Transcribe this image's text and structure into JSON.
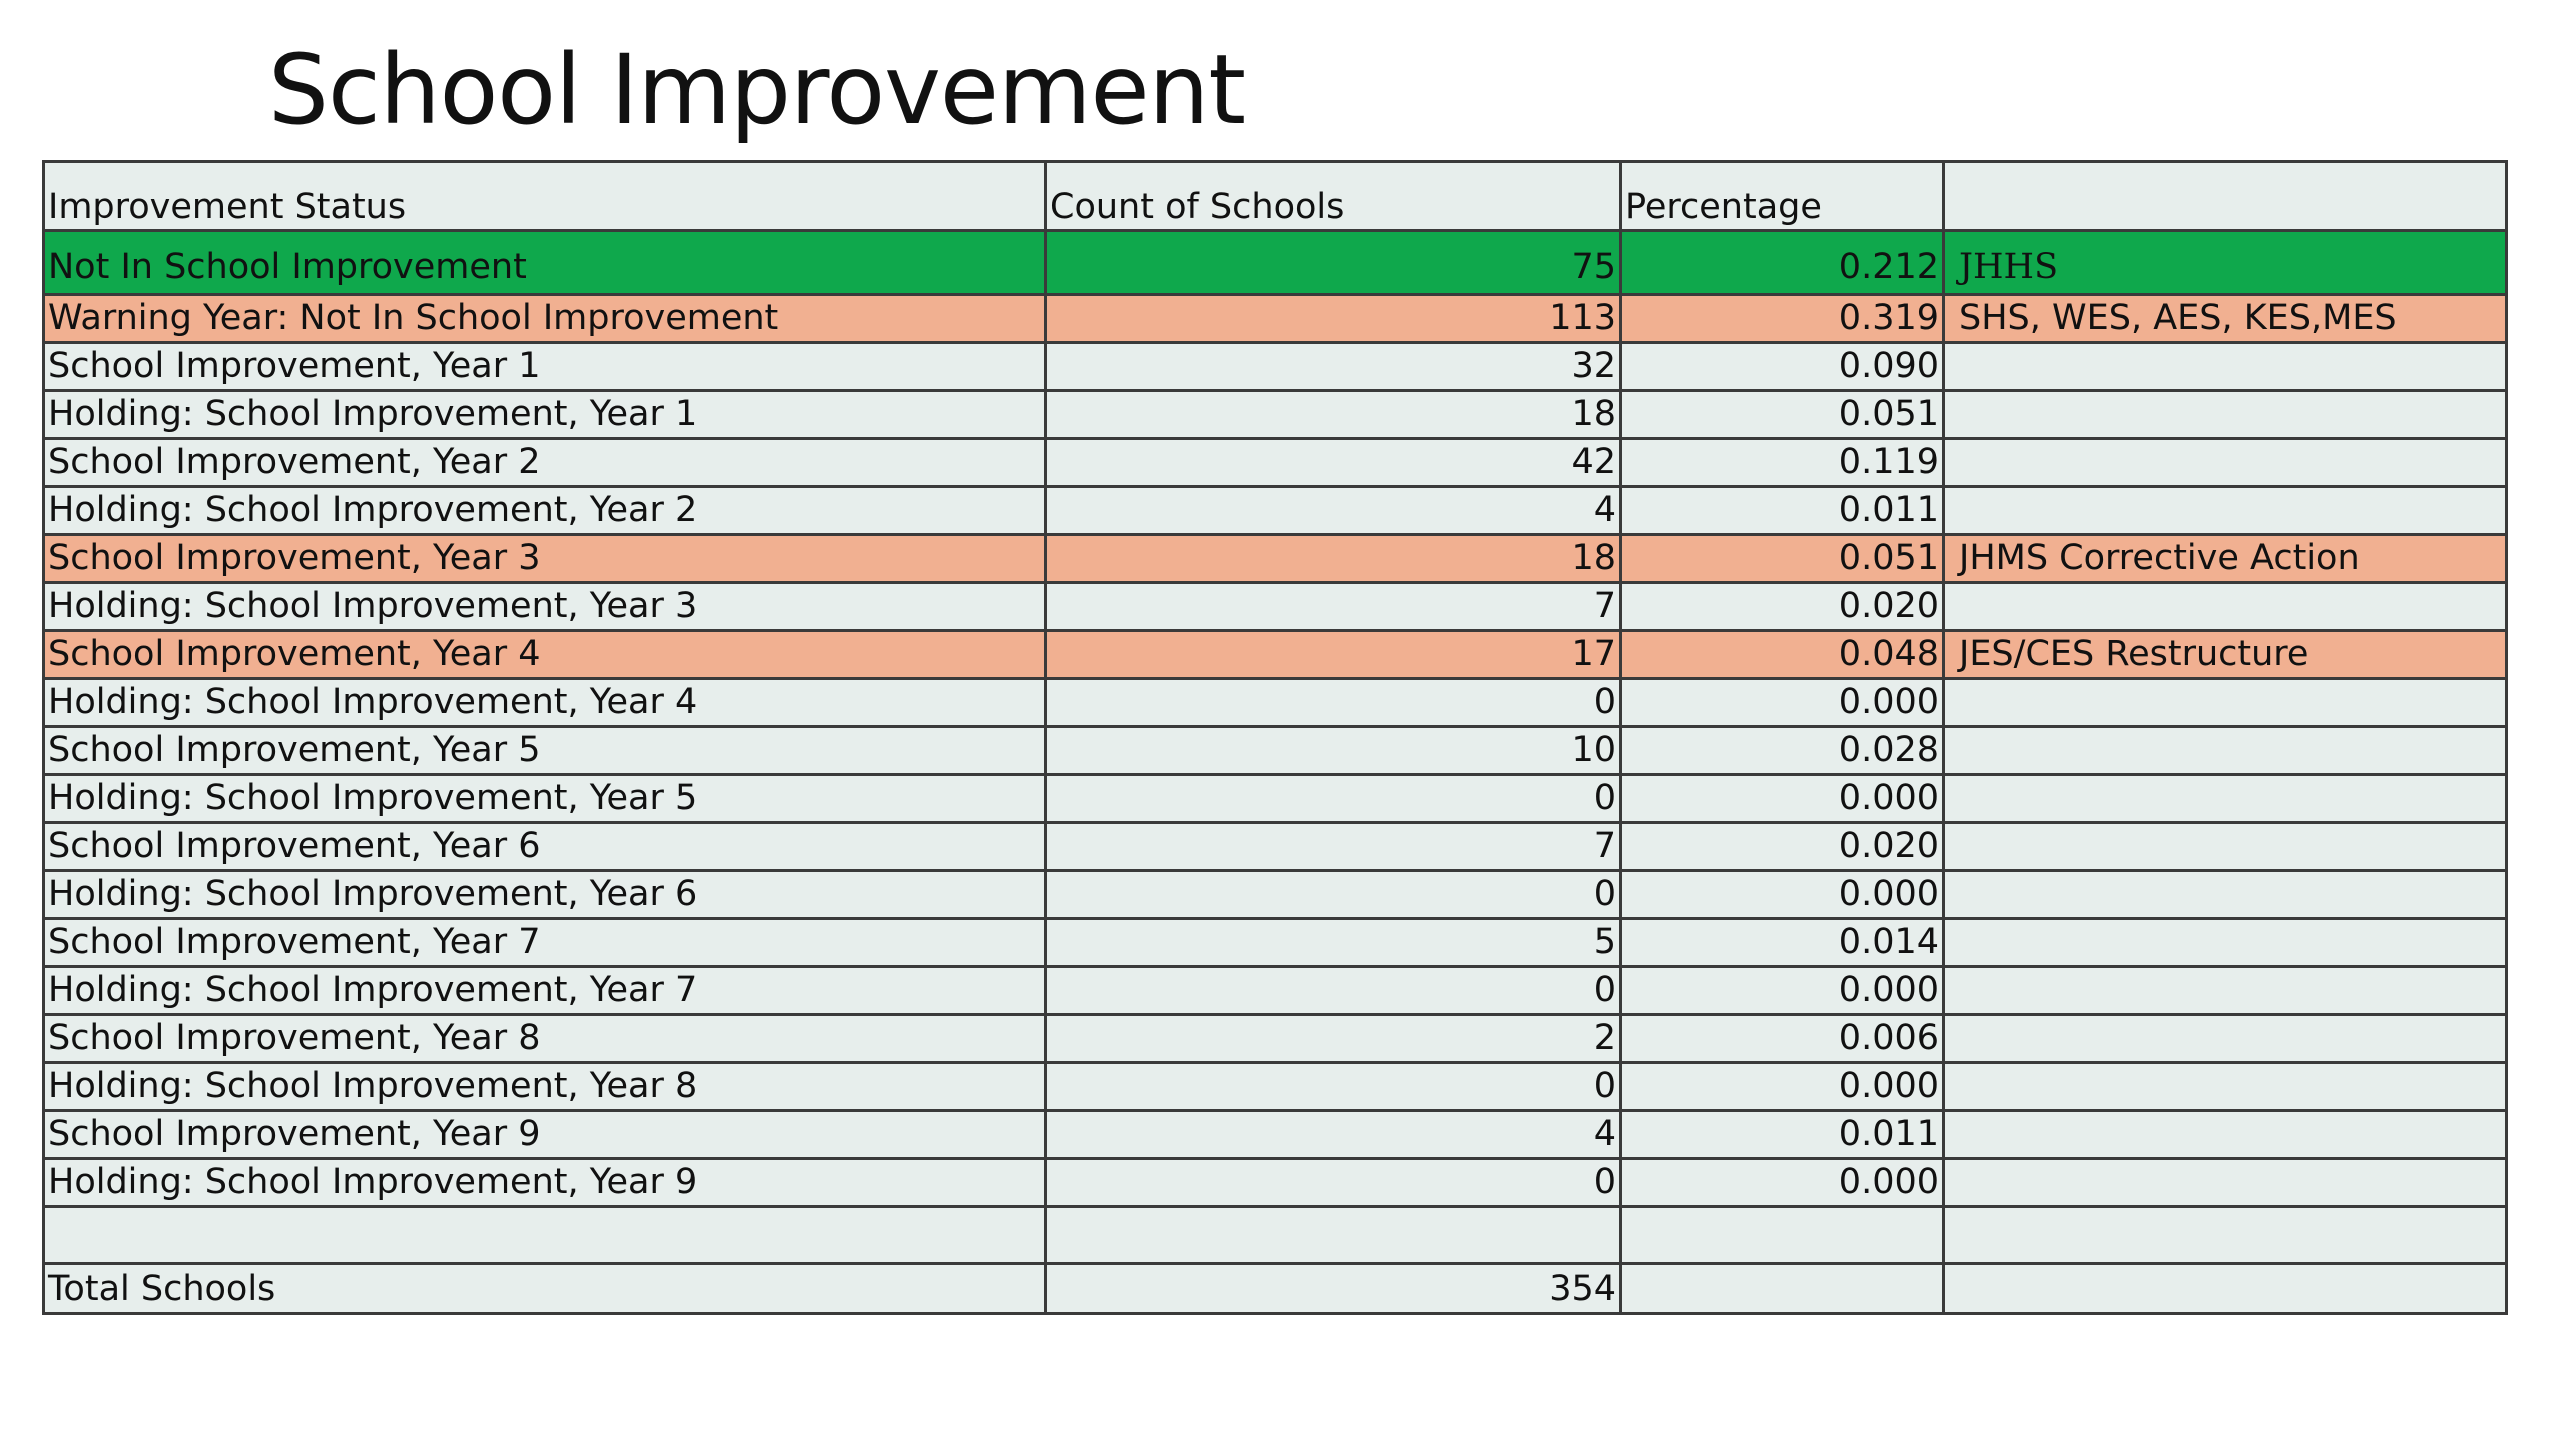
{
  "title": "School Improvement",
  "colors": {
    "green_row": "#0fa84c",
    "orange_row": "#f1b091",
    "cell_background": "#e7eeec",
    "border": "#3a3a3a"
  },
  "table": {
    "headers": [
      "Improvement Status",
      "Count of Schools",
      "Percentage",
      ""
    ],
    "rows": [
      {
        "status": "Not In School Improvement",
        "count": "75",
        "percentage": "0.212",
        "note": "JHHS",
        "highlight": "green"
      },
      {
        "status": "Warning Year: Not In School Improvement",
        "count": "113",
        "percentage": "0.319",
        "note": "SHS, WES, AES, KES,MES",
        "highlight": "orange"
      },
      {
        "status": "School Improvement, Year 1",
        "count": "32",
        "percentage": "0.090",
        "note": "",
        "highlight": ""
      },
      {
        "status": "Holding: School Improvement, Year 1",
        "count": "18",
        "percentage": "0.051",
        "note": "",
        "highlight": ""
      },
      {
        "status": "School Improvement, Year 2",
        "count": "42",
        "percentage": "0.119",
        "note": "",
        "highlight": ""
      },
      {
        "status": "Holding: School Improvement, Year 2",
        "count": "4",
        "percentage": "0.011",
        "note": "",
        "highlight": ""
      },
      {
        "status": "School Improvement, Year 3",
        "count": "18",
        "percentage": "0.051",
        "note": "JHMS Corrective Action",
        "highlight": "orange"
      },
      {
        "status": "Holding: School Improvement, Year 3",
        "count": "7",
        "percentage": "0.020",
        "note": "",
        "highlight": ""
      },
      {
        "status": "School Improvement, Year 4",
        "count": "17",
        "percentage": "0.048",
        "note": "JES/CES Restructure",
        "highlight": "orange"
      },
      {
        "status": "Holding: School Improvement, Year 4",
        "count": "0",
        "percentage": "0.000",
        "note": "",
        "highlight": ""
      },
      {
        "status": "School Improvement, Year 5",
        "count": "10",
        "percentage": "0.028",
        "note": "",
        "highlight": ""
      },
      {
        "status": "Holding: School Improvement, Year 5",
        "count": "0",
        "percentage": "0.000",
        "note": "",
        "highlight": ""
      },
      {
        "status": "School Improvement, Year 6",
        "count": "7",
        "percentage": "0.020",
        "note": "",
        "highlight": ""
      },
      {
        "status": "Holding: School Improvement, Year 6",
        "count": "0",
        "percentage": "0.000",
        "note": "",
        "highlight": ""
      },
      {
        "status": "School Improvement, Year 7",
        "count": "5",
        "percentage": "0.014",
        "note": "",
        "highlight": ""
      },
      {
        "status": "Holding: School Improvement, Year 7",
        "count": "0",
        "percentage": "0.000",
        "note": "",
        "highlight": ""
      },
      {
        "status": "School Improvement, Year 8",
        "count": "2",
        "percentage": "0.006",
        "note": "",
        "highlight": ""
      },
      {
        "status": "Holding: School Improvement, Year 8",
        "count": "0",
        "percentage": "0.000",
        "note": "",
        "highlight": ""
      },
      {
        "status": "School Improvement, Year 9",
        "count": "4",
        "percentage": "0.011",
        "note": "",
        "highlight": ""
      },
      {
        "status": "Holding: School Improvement, Year 9",
        "count": "0",
        "percentage": "0.000",
        "note": "",
        "highlight": ""
      }
    ],
    "total": {
      "label": "Total Schools",
      "count": "354"
    }
  }
}
